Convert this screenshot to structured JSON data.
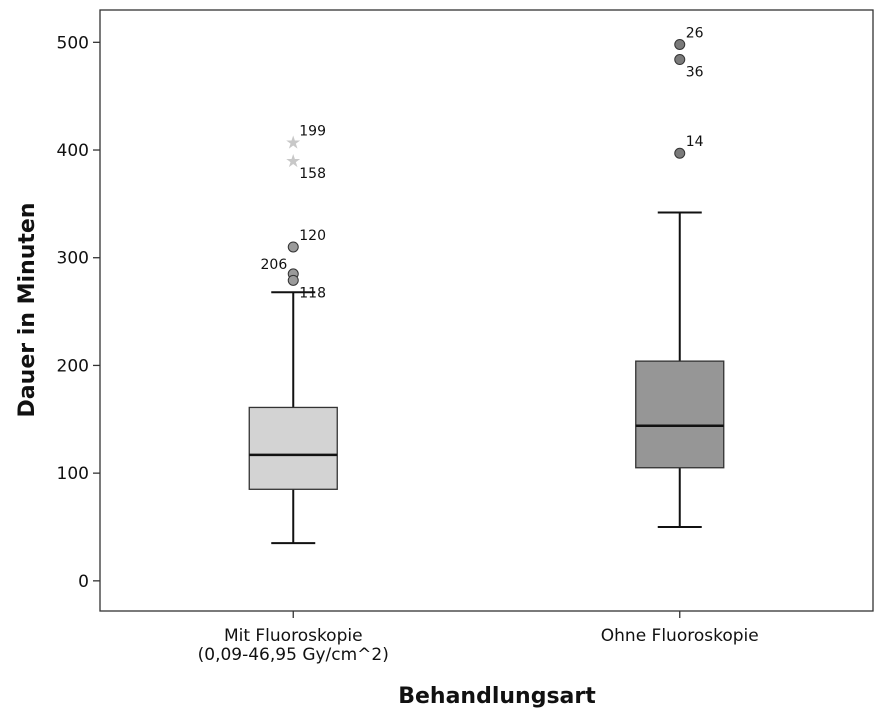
{
  "chart_data": {
    "type": "boxplot",
    "xlabel": "Behandlungsart",
    "ylabel": "Dauer in Minuten",
    "ylim": [
      -28,
      530
    ],
    "yticks": [
      0,
      100,
      200,
      300,
      400,
      500
    ],
    "grid": false,
    "legend": "none",
    "categories": [
      {
        "label_lines": [
          "Mit Fluoroskopie",
          "(0,09-46,95 Gy/cm^2)"
        ],
        "color": "#d3d3d3",
        "whisker_low": 35,
        "q1": 85,
        "median": 117,
        "q3": 161,
        "whisker_high": 268,
        "outliers": [
          {
            "value": 310,
            "marker": "circle",
            "label": "120",
            "label_side": "right-above"
          },
          {
            "value": 285,
            "marker": "circle",
            "label": "206",
            "label_side": "left-above"
          },
          {
            "value": 279,
            "marker": "circle",
            "label": "118",
            "label_side": "right-below"
          }
        ],
        "extremes": [
          {
            "value": 407,
            "marker": "star",
            "label": "199",
            "label_side": "right-above"
          },
          {
            "value": 390,
            "marker": "star",
            "label": "158",
            "label_side": "right-below"
          }
        ]
      },
      {
        "label_lines": [
          "Ohne Fluoroskopie"
        ],
        "color": "#969696",
        "whisker_low": 50,
        "q1": 105,
        "median": 144,
        "q3": 204,
        "whisker_high": 342,
        "outliers": [
          {
            "value": 498,
            "marker": "circle",
            "label": "26",
            "label_side": "right-above"
          },
          {
            "value": 484,
            "marker": "circle",
            "label": "36",
            "label_side": "right-below"
          },
          {
            "value": 397,
            "marker": "circle",
            "label": "14",
            "label_side": "right-above"
          }
        ],
        "extremes": []
      }
    ]
  }
}
